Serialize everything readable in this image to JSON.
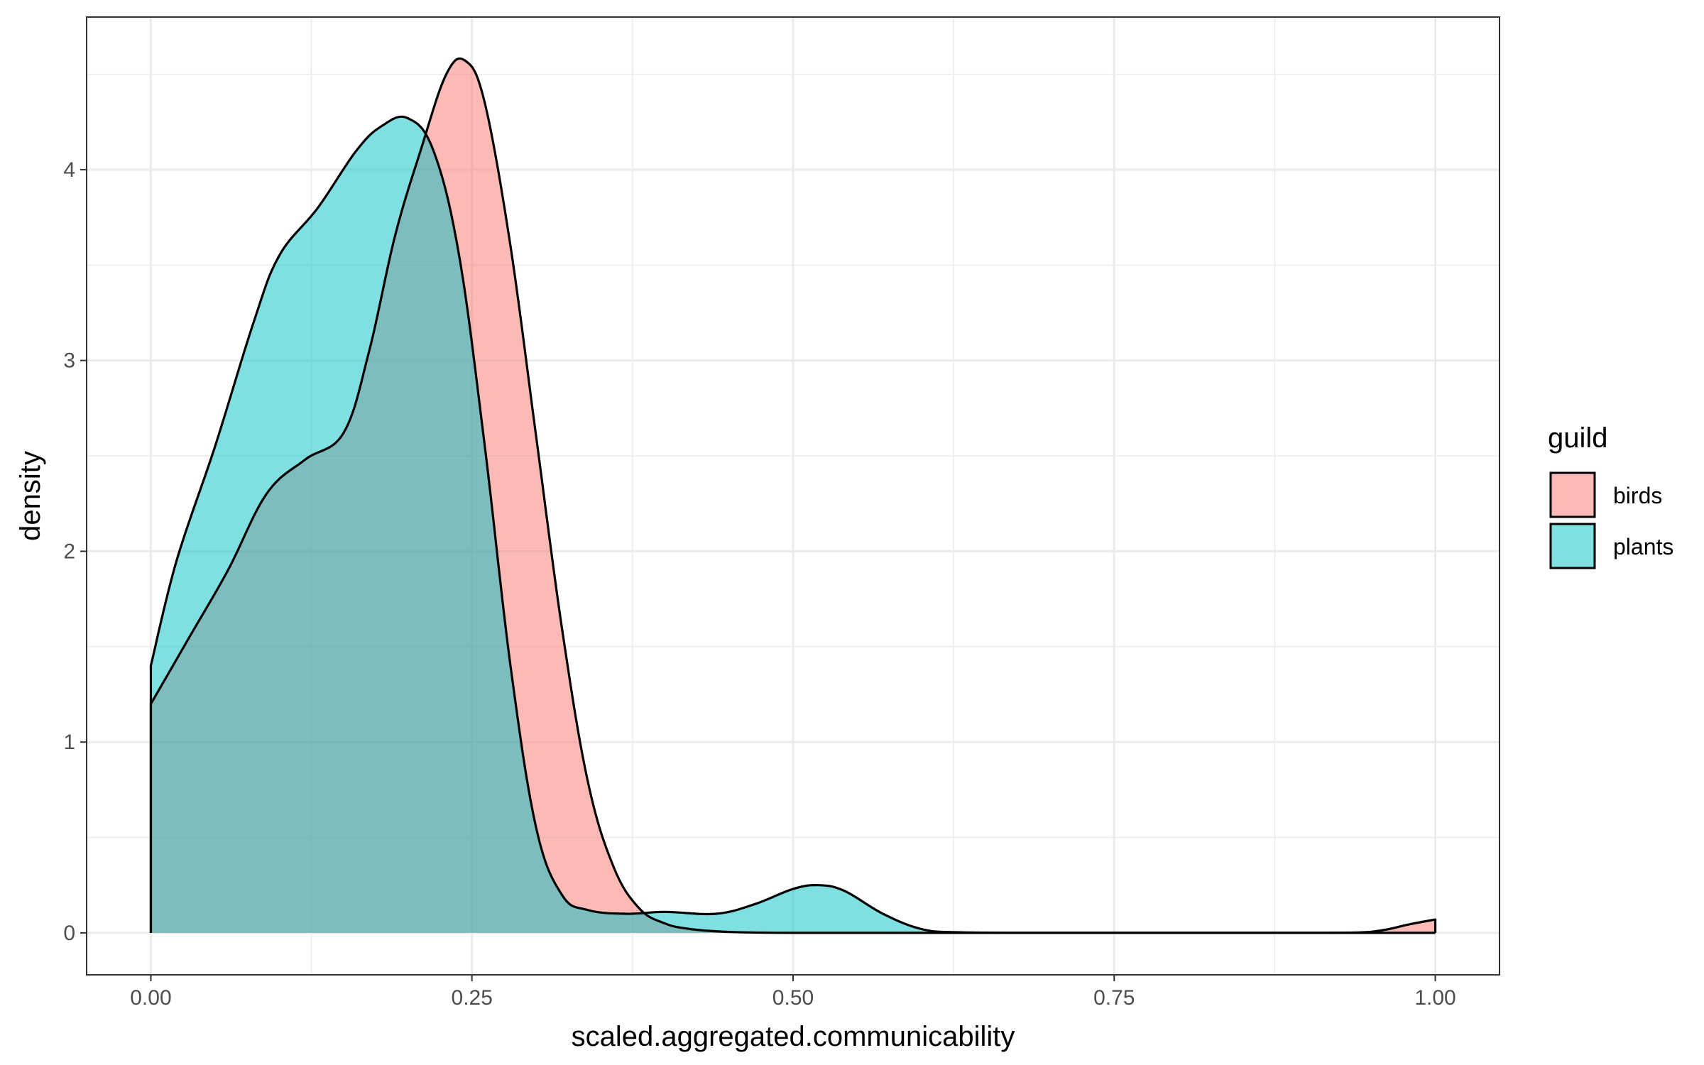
{
  "chart_data": {
    "type": "area",
    "title": "",
    "xlabel": "scaled.aggregated.communicability",
    "ylabel": "density",
    "xlim": [
      -0.05,
      1.05
    ],
    "ylim": [
      -0.22,
      4.8
    ],
    "x_ticks": [
      0.0,
      0.25,
      0.5,
      0.75,
      1.0
    ],
    "x_tick_labels": [
      "0.00",
      "0.25",
      "0.50",
      "0.75",
      "1.00"
    ],
    "y_ticks": [
      0,
      1,
      2,
      3,
      4
    ],
    "y_tick_labels": [
      "0",
      "1",
      "2",
      "3",
      "4"
    ],
    "grid": true,
    "legend": {
      "title": "guild",
      "position": "right"
    },
    "series": [
      {
        "name": "birds",
        "color": "#f8766d",
        "points": [
          [
            0.0,
            1.2
          ],
          [
            0.03,
            1.55
          ],
          [
            0.06,
            1.9
          ],
          [
            0.09,
            2.3
          ],
          [
            0.12,
            2.48
          ],
          [
            0.15,
            2.62
          ],
          [
            0.17,
            3.05
          ],
          [
            0.19,
            3.65
          ],
          [
            0.21,
            4.1
          ],
          [
            0.23,
            4.5
          ],
          [
            0.245,
            4.57
          ],
          [
            0.26,
            4.35
          ],
          [
            0.28,
            3.6
          ],
          [
            0.3,
            2.6
          ],
          [
            0.32,
            1.6
          ],
          [
            0.34,
            0.8
          ],
          [
            0.36,
            0.35
          ],
          [
            0.38,
            0.13
          ],
          [
            0.4,
            0.05
          ],
          [
            0.42,
            0.02
          ],
          [
            0.45,
            0.005
          ],
          [
            0.5,
            0.0
          ],
          [
            0.6,
            0.0
          ],
          [
            0.8,
            0.0
          ],
          [
            0.9,
            0.0
          ],
          [
            0.94,
            0.002
          ],
          [
            0.96,
            0.015
          ],
          [
            0.98,
            0.045
          ],
          [
            1.0,
            0.07
          ]
        ]
      },
      {
        "name": "plants",
        "color": "#00bfc4",
        "points": [
          [
            0.0,
            1.4
          ],
          [
            0.02,
            1.95
          ],
          [
            0.05,
            2.55
          ],
          [
            0.08,
            3.2
          ],
          [
            0.1,
            3.55
          ],
          [
            0.13,
            3.8
          ],
          [
            0.16,
            4.1
          ],
          [
            0.18,
            4.23
          ],
          [
            0.2,
            4.27
          ],
          [
            0.22,
            4.1
          ],
          [
            0.24,
            3.55
          ],
          [
            0.26,
            2.55
          ],
          [
            0.28,
            1.4
          ],
          [
            0.3,
            0.55
          ],
          [
            0.32,
            0.2
          ],
          [
            0.34,
            0.12
          ],
          [
            0.37,
            0.1
          ],
          [
            0.4,
            0.11
          ],
          [
            0.44,
            0.1
          ],
          [
            0.47,
            0.15
          ],
          [
            0.5,
            0.23
          ],
          [
            0.52,
            0.25
          ],
          [
            0.54,
            0.22
          ],
          [
            0.57,
            0.1
          ],
          [
            0.6,
            0.02
          ],
          [
            0.63,
            0.003
          ],
          [
            0.7,
            0.0
          ],
          [
            0.9,
            0.0
          ],
          [
            1.0,
            0.0
          ]
        ]
      }
    ]
  }
}
